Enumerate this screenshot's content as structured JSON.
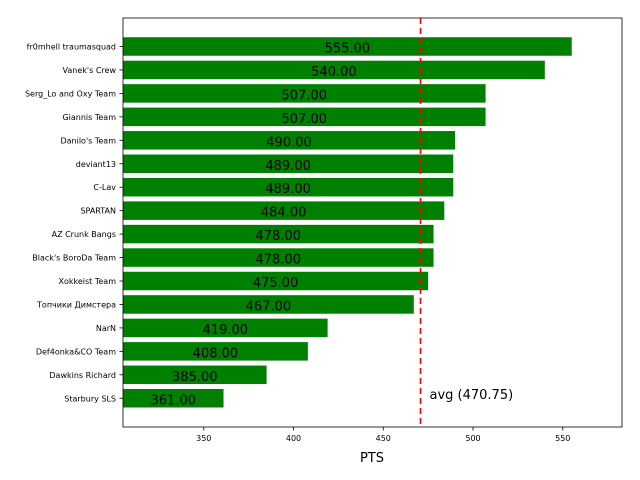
{
  "chart_data": {
    "type": "bar",
    "orientation": "horizontal",
    "categories": [
      "fr0mhell traumasquad",
      "Vanek's Crew",
      "Serg_Lo and Oxy Team",
      "Giannis Team",
      "Danilo's Team",
      "deviant13",
      "C-Lav",
      "SPARTAN",
      "AZ Crunk Bangs",
      "Black's BoroDa Team",
      "Xokkeist Team",
      "Топчики Димстера",
      "NarN",
      "Def4onka&CO Team",
      "Dawkins Richard",
      "Starbury SLS"
    ],
    "values": [
      555,
      540,
      507,
      507,
      490,
      489,
      489,
      484,
      478,
      478,
      475,
      467,
      419,
      408,
      385,
      361
    ],
    "value_labels": [
      "555.00",
      "540.00",
      "507.00",
      "507.00",
      "490.00",
      "489.00",
      "489.00",
      "484.00",
      "478.00",
      "478.00",
      "475.00",
      "467.00",
      "419.00",
      "408.00",
      "385.00",
      "361.00"
    ],
    "xlabel": "PTS",
    "xlim": [
      305,
      583
    ],
    "xticks": [
      350,
      400,
      450,
      500,
      550
    ],
    "xtick_labels": [
      "350",
      "400",
      "450",
      "500",
      "550"
    ],
    "average": 470.75,
    "average_label": "avg (470.75)",
    "colors": {
      "bar": "#008000",
      "average_line": "#ff0000",
      "text": "#000000"
    },
    "grid": false
  }
}
